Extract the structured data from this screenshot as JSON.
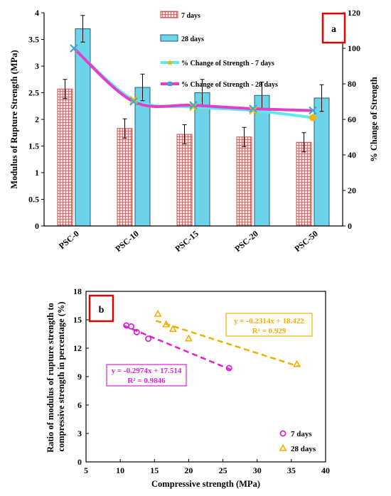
{
  "chart_data": [
    {
      "type": "bar",
      "panel_label": "a",
      "categories": [
        "PSC-0",
        "PSC-10",
        "PSC-15",
        "PSC-20",
        "PSC-50"
      ],
      "ylabel": "Modulus of Rupture Strength (MPa)",
      "y2label": "% Change of Strength",
      "ylim": [
        0,
        4
      ],
      "y2lim": [
        0,
        120
      ],
      "yticks": [
        "0",
        "0.5",
        "1",
        "1.5",
        "2",
        "2.5",
        "3",
        "3.5",
        "4"
      ],
      "y2ticks": [
        "0",
        "20",
        "40",
        "60",
        "80",
        "100",
        "120"
      ],
      "legend_position": "top-center",
      "series": [
        {
          "name": "7 days",
          "kind": "bar",
          "values": [
            2.57,
            1.83,
            1.72,
            1.67,
            1.57
          ],
          "errors": [
            0.18,
            0.18,
            0.18,
            0.18,
            0.18
          ],
          "color": "#c0504d",
          "fill": "#ffe6e6"
        },
        {
          "name": "28 days",
          "kind": "bar",
          "values": [
            3.7,
            2.6,
            2.5,
            2.45,
            2.4
          ],
          "errors": [
            0.25,
            0.25,
            0.25,
            0.25,
            0.25
          ],
          "color": "#1f5f75",
          "fill": "#6cd3e8"
        },
        {
          "name": "% Change of Strength - 7 days",
          "kind": "line",
          "axis": "y2",
          "values": [
            100,
            71,
            67,
            65,
            61
          ],
          "color": "#5ee8f2",
          "marker_color": "#f2b800"
        },
        {
          "name": "% Change of Strength - 28 days",
          "kind": "line",
          "axis": "y2",
          "values": [
            100,
            70,
            68,
            66,
            65
          ],
          "color": "#e040c8",
          "marker_color": "#3aa8d8"
        }
      ]
    },
    {
      "type": "scatter",
      "panel_label": "b",
      "xlabel": "Compressive strength (MPa)",
      "ylabel": "Ratio of modulus of rupture strength to compressive strength in percentage (%)",
      "ylabel_lines": [
        "Ratio of modulus of rupture strength to",
        "compressive strength in percentage (%)"
      ],
      "xlim": [
        5,
        40
      ],
      "ylim": [
        0,
        18
      ],
      "xticks": [
        "5",
        "10",
        "15",
        "20",
        "25",
        "30",
        "35",
        "40"
      ],
      "yticks": [
        "0",
        "3",
        "6",
        "9",
        "12",
        "15",
        "18"
      ],
      "legend_position": "bottom-right",
      "series": [
        {
          "name": "7 days",
          "marker": "circle",
          "color": "#e020d8",
          "x": [
            10.9,
            11.6,
            12.4,
            14.1,
            25.9
          ],
          "y": [
            14.4,
            14.3,
            13.7,
            13.0,
            9.9
          ],
          "trend": {
            "equation": "y = -0.2974x + 17.514",
            "r2": "R² = 0.9846",
            "x_range": [
              10.5,
              26.5
            ]
          }
        },
        {
          "name": "28 days",
          "marker": "triangle",
          "color": "#f0b000",
          "x": [
            15.5,
            16.7,
            17.7,
            20.0,
            35.8
          ],
          "y": [
            15.6,
            14.5,
            14.0,
            13.0,
            10.3
          ],
          "trend": {
            "equation": "y = -0.2314x + 18.422",
            "r2": "R² = 0.929",
            "x_range": [
              15.2,
              36.0
            ]
          }
        }
      ]
    }
  ]
}
